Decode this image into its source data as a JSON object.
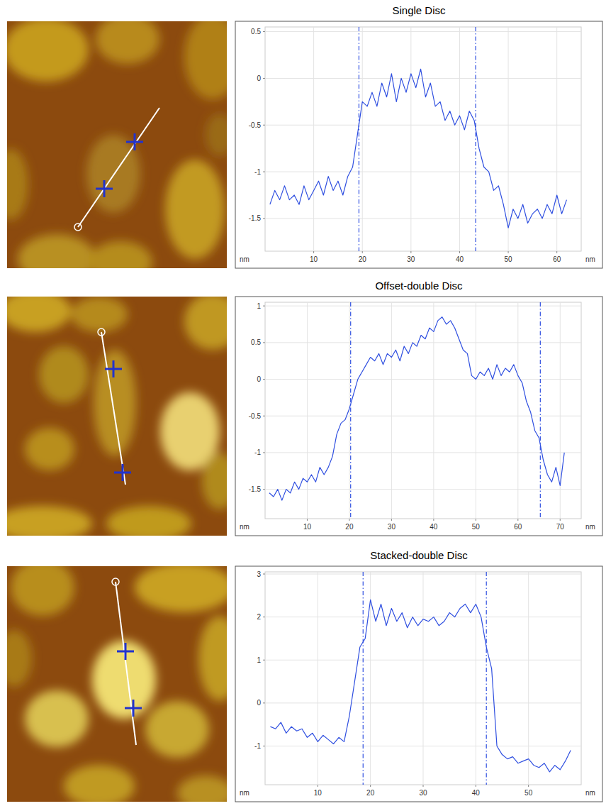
{
  "chart_data": [
    {
      "type": "line",
      "title": "Single Disc",
      "x_label": "nm",
      "y_label": "nm",
      "color": "#2f4fe0",
      "line_style": "solid",
      "grid": true,
      "x": [
        1,
        2,
        3,
        4,
        5,
        6,
        7,
        8,
        9,
        10,
        11,
        12,
        13,
        14,
        15,
        16,
        17,
        18,
        19,
        20,
        21,
        22,
        23,
        24,
        25,
        26,
        27,
        28,
        29,
        30,
        31,
        32,
        33,
        34,
        35,
        36,
        37,
        38,
        39,
        40,
        41,
        42,
        43,
        44,
        45,
        46,
        47,
        48,
        49,
        50,
        51,
        52,
        53,
        54,
        55,
        56,
        57,
        58,
        59,
        60,
        61,
        62
      ],
      "values": [
        -1.35,
        -1.2,
        -1.3,
        -1.15,
        -1.3,
        -1.25,
        -1.35,
        -1.15,
        -1.3,
        -1.2,
        -1.1,
        -1.25,
        -1.05,
        -1.2,
        -1.1,
        -1.25,
        -1.05,
        -0.95,
        -0.6,
        -0.25,
        -0.3,
        -0.15,
        -0.3,
        -0.05,
        -0.2,
        0.05,
        -0.25,
        0.0,
        -0.15,
        0.05,
        -0.1,
        0.1,
        -0.2,
        -0.05,
        -0.3,
        -0.25,
        -0.45,
        -0.35,
        -0.5,
        -0.4,
        -0.55,
        -0.35,
        -0.45,
        -0.75,
        -0.95,
        -1.0,
        -1.2,
        -1.15,
        -1.35,
        -1.6,
        -1.4,
        -1.5,
        -1.35,
        -1.55,
        -1.45,
        -1.4,
        -1.5,
        -1.35,
        -1.45,
        -1.25,
        -1.45,
        -1.3
      ],
      "xlim": [
        0,
        65
      ],
      "ylim": [
        -1.85,
        0.55
      ],
      "xticks": [
        10,
        20,
        30,
        40,
        50,
        60
      ],
      "yticks": [
        -1.5,
        -1,
        -0.5,
        0,
        0.5
      ],
      "cursors": [
        19.3,
        43.3
      ]
    },
    {
      "type": "line",
      "title": "Offset-double Disc",
      "x_label": "nm",
      "y_label": "nm",
      "color": "#2f4fe0",
      "line_style": "solid",
      "grid": true,
      "x": [
        1,
        2,
        3,
        4,
        5,
        6,
        7,
        8,
        9,
        10,
        11,
        12,
        13,
        14,
        15,
        16,
        17,
        18,
        19,
        20,
        21,
        22,
        23,
        24,
        25,
        26,
        27,
        28,
        29,
        30,
        31,
        32,
        33,
        34,
        35,
        36,
        37,
        38,
        39,
        40,
        41,
        42,
        43,
        44,
        45,
        46,
        47,
        48,
        49,
        50,
        51,
        52,
        53,
        54,
        55,
        56,
        57,
        58,
        59,
        60,
        61,
        62,
        63,
        64,
        65,
        66,
        67,
        68,
        69,
        70,
        71
      ],
      "values": [
        -1.55,
        -1.6,
        -1.5,
        -1.65,
        -1.5,
        -1.55,
        -1.4,
        -1.5,
        -1.35,
        -1.4,
        -1.3,
        -1.4,
        -1.2,
        -1.3,
        -1.2,
        -1.05,
        -0.75,
        -0.6,
        -0.55,
        -0.4,
        -0.2,
        0.0,
        0.1,
        0.2,
        0.3,
        0.25,
        0.35,
        0.2,
        0.35,
        0.3,
        0.4,
        0.25,
        0.45,
        0.35,
        0.5,
        0.45,
        0.6,
        0.55,
        0.7,
        0.65,
        0.8,
        0.85,
        0.75,
        0.8,
        0.7,
        0.55,
        0.4,
        0.35,
        0.05,
        0.0,
        0.1,
        0.05,
        0.15,
        0.0,
        0.2,
        0.05,
        0.15,
        0.1,
        0.2,
        0.05,
        -0.05,
        -0.3,
        -0.45,
        -0.7,
        -0.8,
        -1.1,
        -1.3,
        -1.4,
        -1.2,
        -1.45,
        -1.0
      ],
      "xlim": [
        0,
        75
      ],
      "ylim": [
        -1.9,
        1.05
      ],
      "xticks": [
        10,
        20,
        30,
        40,
        50,
        60,
        70
      ],
      "yticks": [
        -1.5,
        -1,
        -0.5,
        0,
        0.5,
        1
      ],
      "cursors": [
        20.3,
        65.3
      ]
    },
    {
      "type": "line",
      "title": "Stacked-double Disc",
      "x_label": "nm",
      "y_label": "nm",
      "color": "#2f4fe0",
      "line_style": "solid",
      "grid": true,
      "x": [
        1,
        2,
        3,
        4,
        5,
        6,
        7,
        8,
        9,
        10,
        11,
        12,
        13,
        14,
        15,
        16,
        17,
        18,
        19,
        20,
        21,
        22,
        23,
        24,
        25,
        26,
        27,
        28,
        29,
        30,
        31,
        32,
        33,
        34,
        35,
        36,
        37,
        38,
        39,
        40,
        41,
        42,
        43,
        44,
        45,
        46,
        47,
        48,
        49,
        50,
        51,
        52,
        53,
        54,
        55,
        56,
        57,
        58
      ],
      "values": [
        -0.55,
        -0.6,
        -0.45,
        -0.7,
        -0.55,
        -0.65,
        -0.6,
        -0.8,
        -0.7,
        -0.9,
        -0.75,
        -0.85,
        -0.95,
        -0.8,
        -0.9,
        -0.3,
        0.5,
        1.3,
        1.5,
        2.4,
        1.9,
        2.3,
        1.8,
        2.2,
        1.9,
        2.1,
        1.75,
        2.0,
        1.8,
        1.95,
        1.9,
        2.0,
        1.8,
        1.9,
        2.1,
        2.0,
        2.2,
        2.3,
        2.1,
        2.3,
        2.0,
        1.3,
        0.8,
        -1.0,
        -1.2,
        -1.3,
        -1.25,
        -1.4,
        -1.35,
        -1.3,
        -1.45,
        -1.5,
        -1.4,
        -1.6,
        -1.45,
        -1.55,
        -1.35,
        -1.1
      ],
      "xlim": [
        0,
        60
      ],
      "ylim": [
        -1.9,
        3.05
      ],
      "xticks": [
        10,
        20,
        30,
        40,
        50
      ],
      "yticks": [
        -1,
        0,
        1,
        2,
        3
      ],
      "cursors": [
        18.6,
        42.0
      ]
    }
  ]
}
